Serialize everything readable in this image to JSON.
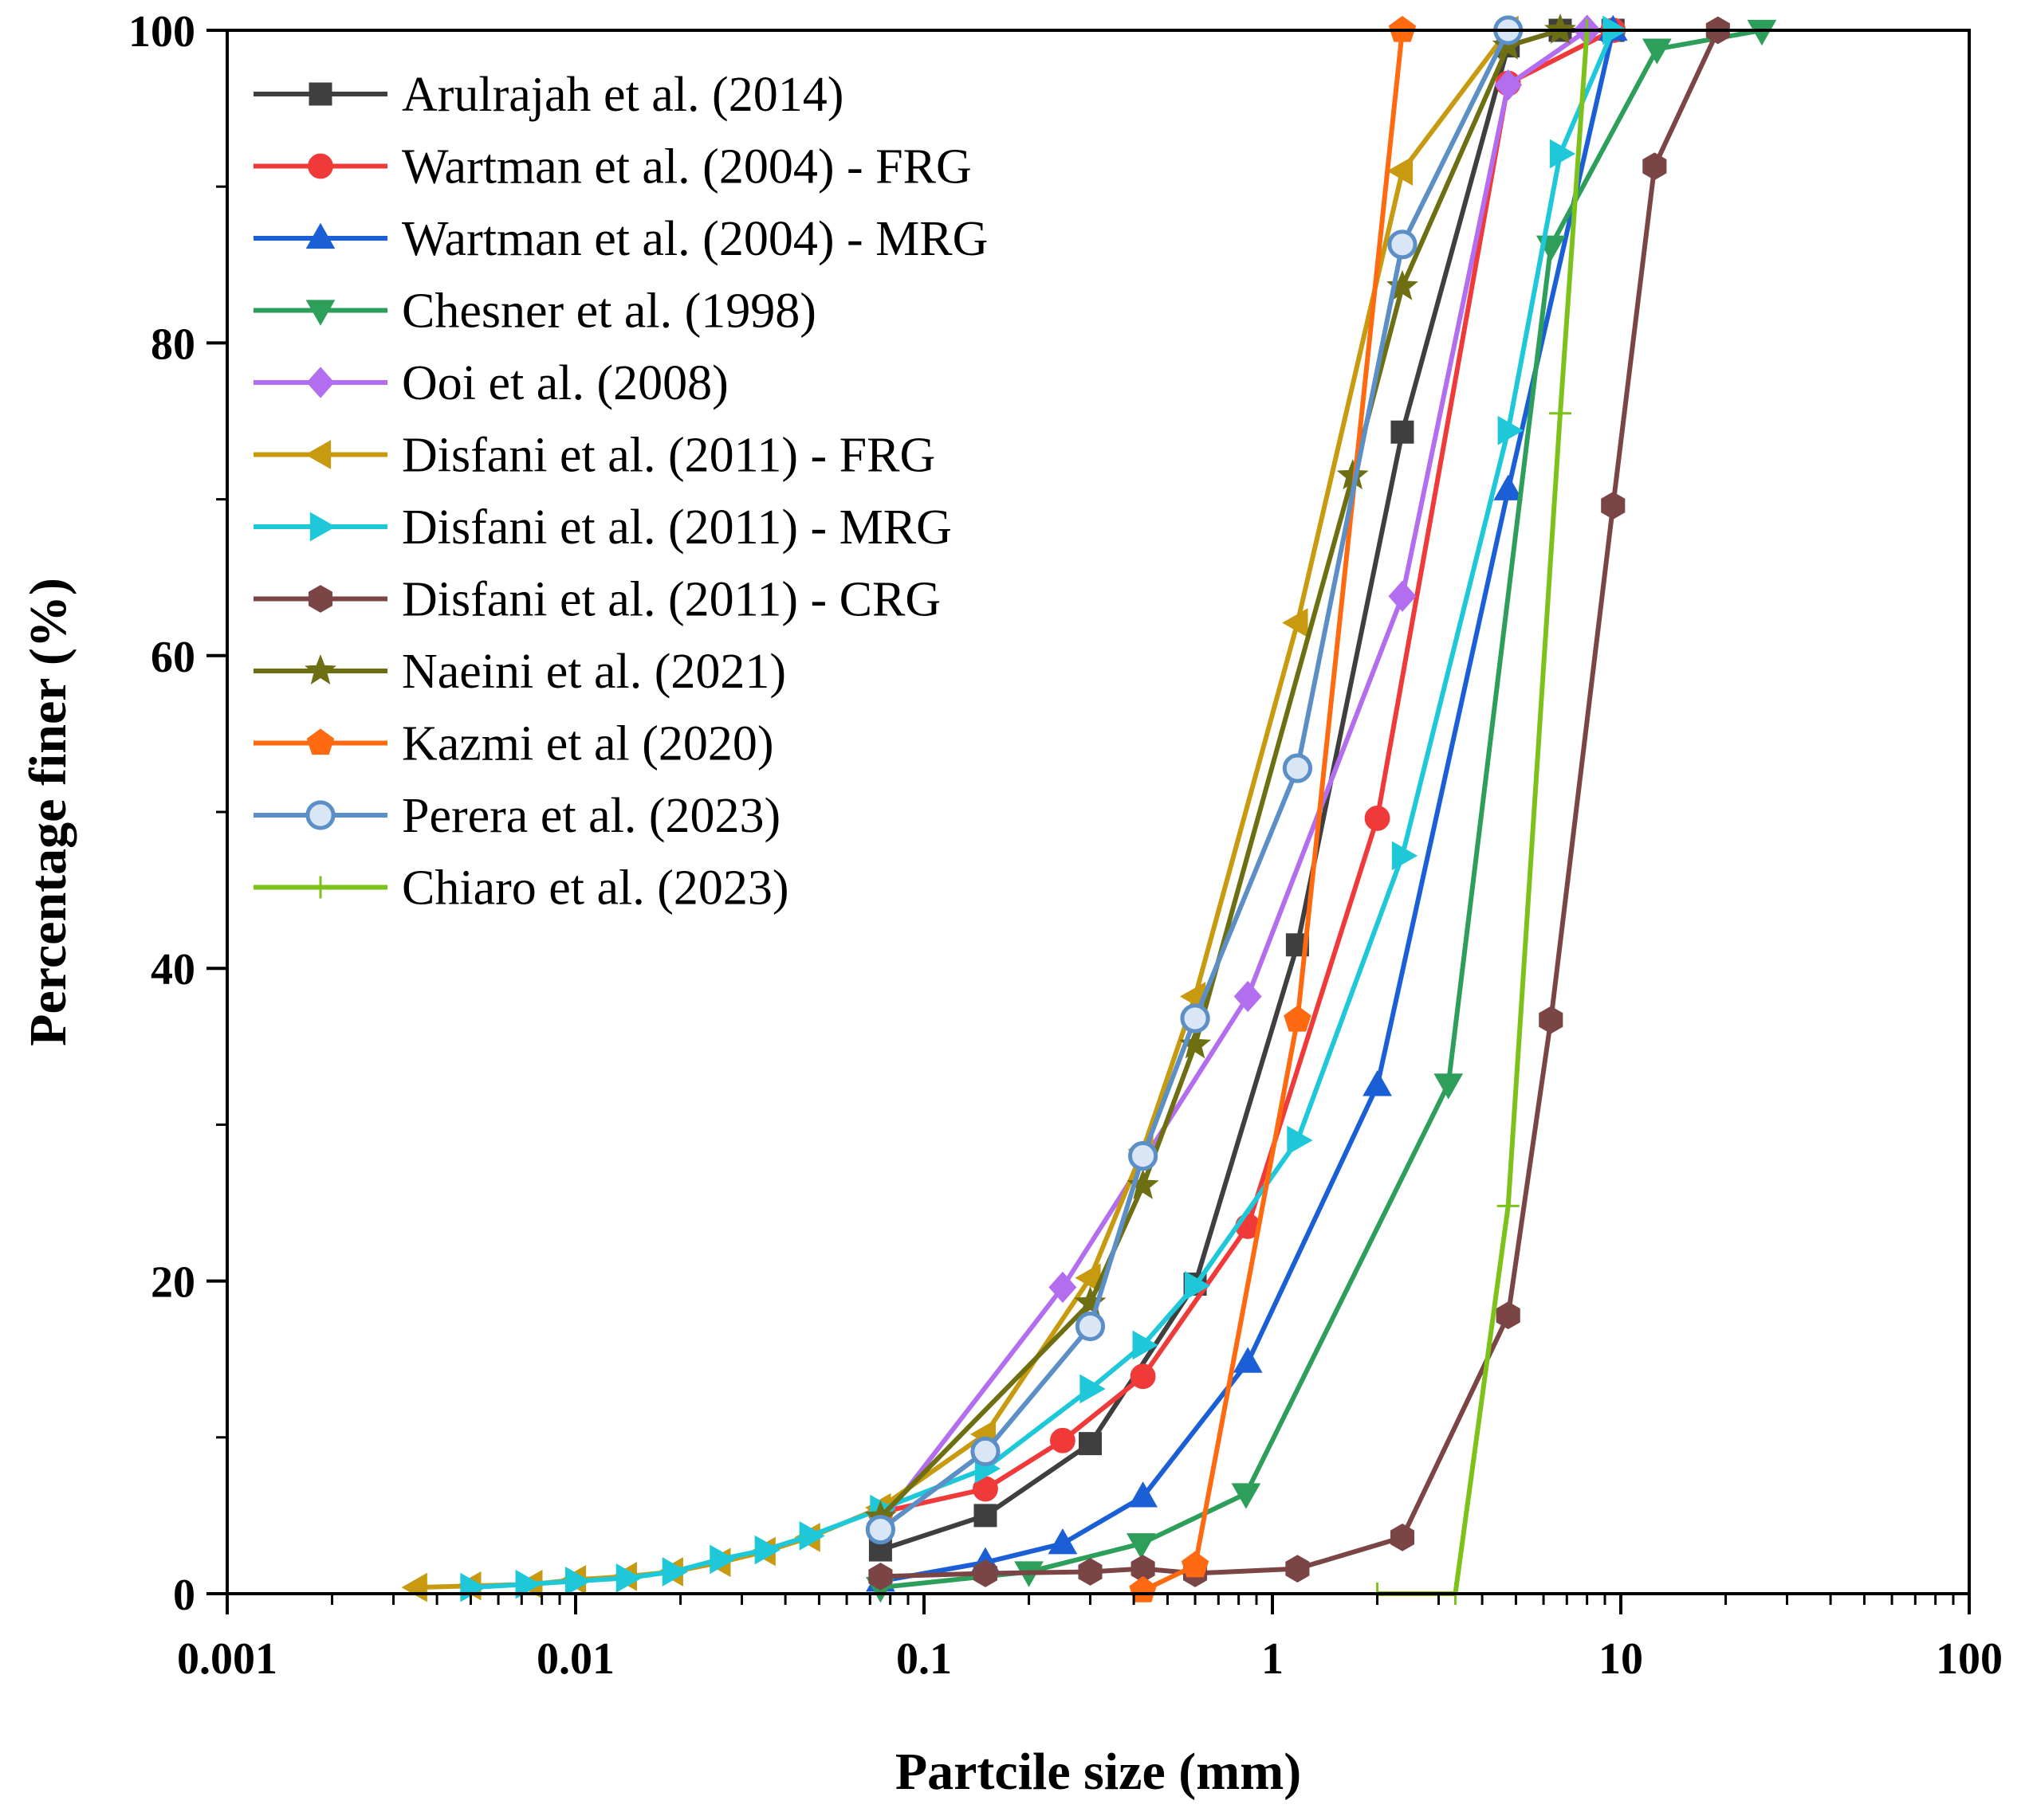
{
  "chart_data": {
    "type": "line",
    "title": "",
    "xlabel": "Partcile size (mm)",
    "ylabel": "Percentage finer (%)",
    "x_scale": "log",
    "xlim": [
      0.001,
      100
    ],
    "ylim": [
      0,
      100
    ],
    "x_ticks": [
      0.001,
      0.01,
      0.1,
      1,
      10,
      100
    ],
    "x_tick_labels": [
      "0.001",
      "0.01",
      "0.1",
      "1",
      "10",
      "100"
    ],
    "y_ticks": [
      0,
      20,
      40,
      60,
      80,
      100
    ],
    "y_tick_labels": [
      "0",
      "20",
      "40",
      "60",
      "80",
      "100"
    ],
    "grid": false,
    "legend_position": "top-left",
    "series": [
      {
        "name": "Arulrajah et al. (2014)",
        "color": "#3f3f3f",
        "marker": "square",
        "x": [
          0.075,
          0.15,
          0.3,
          0.6,
          1.18,
          2.36,
          4.75,
          6.7,
          9.5
        ],
        "y": [
          2.8,
          5,
          9.6,
          19.8,
          41.5,
          74.3,
          99,
          100,
          100
        ]
      },
      {
        "name": "Wartman et al. (2004) - FRG",
        "color": "#f03a3a",
        "marker": "circle",
        "x": [
          0.075,
          0.15,
          0.25,
          0.425,
          0.85,
          2.0,
          4.75,
          9.5
        ],
        "y": [
          5.2,
          6.7,
          9.8,
          13.9,
          23.5,
          49.6,
          96.6,
          100
        ]
      },
      {
        "name": "Wartman et al. (2004) - MRG",
        "color": "#1a5fd6",
        "marker": "triangle-up",
        "x": [
          0.075,
          0.15,
          0.25,
          0.425,
          0.85,
          2.0,
          4.75,
          9.5
        ],
        "y": [
          0.8,
          2.0,
          3.2,
          6.2,
          14.8,
          32.5,
          70.6,
          100
        ]
      },
      {
        "name": "Chesner et al. (1998)",
        "color": "#2e9e5b",
        "marker": "triangle-down",
        "x": [
          0.075,
          0.2,
          0.42,
          0.84,
          3.2,
          6.3,
          12.7,
          25.4
        ],
        "y": [
          0.4,
          1.4,
          3.2,
          6.4,
          32.6,
          86.2,
          98.8,
          100
        ]
      },
      {
        "name": "Ooi et al. (2008)",
        "color": "#b36ef0",
        "marker": "diamond",
        "x": [
          0.075,
          0.25,
          0.85,
          2.36,
          4.75,
          8.0
        ],
        "y": [
          4.5,
          19.6,
          38.2,
          63.8,
          96.5,
          100
        ]
      },
      {
        "name": "Disfani et al. (2011) - FRG",
        "color": "#c79a10",
        "marker": "triangle-left",
        "x": [
          0.0035,
          0.005,
          0.0075,
          0.01,
          0.014,
          0.019,
          0.026,
          0.035,
          0.047,
          0.075,
          0.15,
          0.3,
          0.425,
          0.6,
          1.18,
          2.36,
          4.75
        ],
        "y": [
          0.4,
          0.5,
          0.6,
          0.9,
          1.1,
          1.4,
          2.0,
          2.7,
          3.6,
          5.5,
          10.2,
          20.2,
          28.4,
          38.2,
          62.1,
          91.0,
          100
        ]
      },
      {
        "name": "Disfani et al. (2011) - MRG",
        "color": "#1fc8d8",
        "marker": "triangle-right",
        "x": [
          0.005,
          0.0072,
          0.01,
          0.014,
          0.019,
          0.026,
          0.035,
          0.047,
          0.075,
          0.15,
          0.3,
          0.425,
          0.6,
          1.18,
          2.36,
          4.75,
          6.7,
          9.5
        ],
        "y": [
          0.4,
          0.6,
          0.8,
          1.0,
          1.4,
          2.2,
          2.8,
          3.7,
          5.4,
          8.0,
          13.1,
          15.9,
          19.7,
          29.0,
          47.2,
          74.4,
          92.1,
          100
        ]
      },
      {
        "name": "Disfani et al. (2011) - CRG",
        "color": "#7b4545",
        "marker": "hexagon",
        "x": [
          0.075,
          0.15,
          0.3,
          0.425,
          0.6,
          1.18,
          2.36,
          4.75,
          6.3,
          9.5,
          12.5,
          19.0
        ],
        "y": [
          1.1,
          1.3,
          1.4,
          1.6,
          1.3,
          1.6,
          3.6,
          17.8,
          36.7,
          69.6,
          91.3,
          100
        ]
      },
      {
        "name": "Naeini et al. (2021)",
        "color": "#6e6e12",
        "marker": "star",
        "x": [
          0.075,
          0.3,
          0.425,
          0.6,
          1.7,
          2.36,
          4.75,
          6.7
        ],
        "y": [
          4.9,
          18.6,
          26.1,
          35.1,
          71.5,
          83.6,
          99.0,
          100
        ]
      },
      {
        "name": "Kazmi et al (2020)",
        "color": "#ff6a10",
        "marker": "pentagon",
        "x": [
          0.425,
          0.6,
          1.18,
          2.36
        ],
        "y": [
          0.2,
          1.8,
          36.7,
          100
        ]
      },
      {
        "name": "Perera et al. (2023)",
        "color": "#5b8fc6",
        "marker": "sphere",
        "x": [
          0.075,
          0.15,
          0.3,
          0.425,
          0.6,
          1.18,
          2.36,
          4.75
        ],
        "y": [
          4.1,
          9.1,
          17.1,
          28.0,
          36.8,
          52.8,
          86.3,
          100
        ]
      },
      {
        "name": "Chiaro et al. (2023)",
        "color": "#7cc21a",
        "marker": "plus",
        "x": [
          2.0,
          3.35,
          4.75,
          6.7,
          8.0
        ],
        "y": [
          0,
          0,
          24.8,
          75.5,
          100
        ]
      }
    ]
  }
}
